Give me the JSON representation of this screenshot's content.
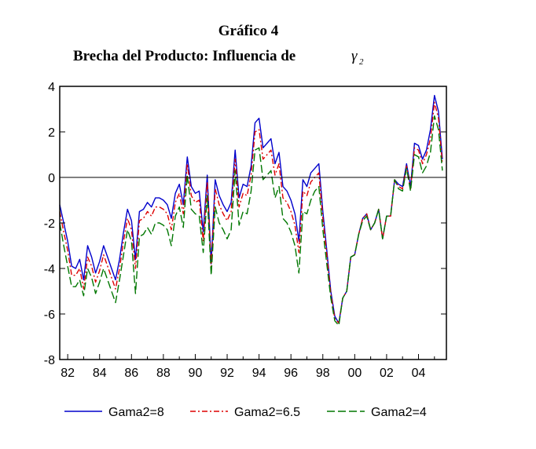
{
  "chart_data": {
    "type": "line",
    "title": "Gráfico 4",
    "subtitle": "Brecha del Producto: Influencia de",
    "subtitle_symbol": "γ",
    "subtitle_symbol_sub": "2",
    "xlabel": "",
    "ylabel": "",
    "ylim": [
      -8,
      4
    ],
    "xlim": [
      1981.5,
      2005.75
    ],
    "y_ticks": [
      4,
      2,
      0,
      -2,
      -4,
      -6,
      -8
    ],
    "y_tick_labels": [
      "4",
      "2",
      "0",
      "-2",
      "-4",
      "-6",
      "-8"
    ],
    "x_ticks": [
      1982,
      1984,
      1986,
      1988,
      1990,
      1992,
      1994,
      1996,
      1998,
      2000,
      2002,
      2004
    ],
    "x_tick_labels": [
      "82",
      "84",
      "86",
      "88",
      "90",
      "92",
      "94",
      "96",
      "98",
      "00",
      "02",
      "04"
    ],
    "zero_line": true,
    "grid": false,
    "legend_position": "bottom",
    "x_start": 1981.5,
    "x_step": 0.25,
    "series": [
      {
        "name": "Gama2=8",
        "color": "#0000cc",
        "dash": "solid",
        "values": [
          -1.2,
          -2.0,
          -2.8,
          -3.9,
          -4.0,
          -3.6,
          -4.5,
          -3.0,
          -3.5,
          -4.2,
          -3.7,
          -3.0,
          -3.5,
          -4.0,
          -4.5,
          -3.6,
          -2.4,
          -1.4,
          -1.9,
          -3.6,
          -1.5,
          -1.4,
          -1.1,
          -1.3,
          -0.9,
          -0.9,
          -1.0,
          -1.2,
          -1.8,
          -0.7,
          -0.3,
          -1.2,
          0.9,
          -0.4,
          -0.7,
          -0.6,
          -2.4,
          0.1,
          -3.8,
          -0.1,
          -0.8,
          -1.2,
          -1.5,
          -1.1,
          1.2,
          -0.9,
          -0.3,
          -0.4,
          0.5,
          2.4,
          2.6,
          1.3,
          1.5,
          1.7,
          0.6,
          1.1,
          -0.4,
          -0.6,
          -1.0,
          -1.6,
          -2.8,
          -0.1,
          -0.4,
          0.2,
          0.4,
          0.6,
          -1.5,
          -3.2,
          -5.0,
          -6.1,
          -6.4,
          -5.3,
          -5.0,
          -3.5,
          -3.4,
          -2.5,
          -1.8,
          -1.6,
          -2.3,
          -2.0,
          -1.4,
          -2.7,
          -1.7,
          -1.7,
          -0.1,
          -0.3,
          -0.4,
          0.6,
          -0.4,
          1.5,
          1.4,
          0.8,
          1.2,
          2.1,
          3.6,
          2.9,
          0.8
        ]
      },
      {
        "name": "Gama2=6.5",
        "color": "#dd0000",
        "dash": "dashdot",
        "values": [
          -1.5,
          -2.4,
          -3.2,
          -4.3,
          -4.3,
          -4.0,
          -4.9,
          -3.5,
          -3.9,
          -4.6,
          -4.1,
          -3.4,
          -3.9,
          -4.4,
          -4.9,
          -4.0,
          -2.8,
          -1.8,
          -2.3,
          -4.0,
          -1.9,
          -1.8,
          -1.5,
          -1.7,
          -1.3,
          -1.3,
          -1.4,
          -1.6,
          -2.3,
          -1.1,
          -0.7,
          -1.6,
          0.6,
          -0.8,
          -1.1,
          -1.0,
          -2.8,
          -0.2,
          -4.0,
          -0.5,
          -1.2,
          -1.6,
          -1.9,
          -1.5,
          0.8,
          -1.3,
          -0.7,
          -0.8,
          0.1,
          2.0,
          2.1,
          0.8,
          1.0,
          1.2,
          0.1,
          0.6,
          -0.9,
          -1.1,
          -1.5,
          -2.1,
          -3.3,
          -0.6,
          -0.8,
          -0.2,
          0.0,
          0.2,
          -1.8,
          -3.4,
          -5.1,
          -6.2,
          -6.4,
          -5.3,
          -5.0,
          -3.5,
          -3.4,
          -2.5,
          -1.8,
          -1.6,
          -2.3,
          -2.0,
          -1.4,
          -2.7,
          -1.7,
          -1.7,
          -0.1,
          -0.4,
          -0.5,
          0.5,
          -0.5,
          1.3,
          1.2,
          0.6,
          1.0,
          1.7,
          3.3,
          2.6,
          0.6
        ]
      },
      {
        "name": "Gama2=4",
        "color": "#007700",
        "dash": "longdash",
        "values": [
          -2.0,
          -3.0,
          -3.9,
          -4.8,
          -4.8,
          -4.5,
          -5.2,
          -4.0,
          -4.4,
          -5.1,
          -4.6,
          -4.0,
          -4.5,
          -5.0,
          -5.5,
          -4.5,
          -3.4,
          -2.3,
          -2.8,
          -5.1,
          -2.6,
          -2.5,
          -2.2,
          -2.5,
          -2.0,
          -2.0,
          -2.1,
          -2.3,
          -3.0,
          -1.7,
          -1.3,
          -2.2,
          0.1,
          -1.4,
          -1.6,
          -1.7,
          -3.3,
          -0.8,
          -4.3,
          -1.3,
          -2.0,
          -2.3,
          -2.7,
          -2.3,
          0.3,
          -2.1,
          -1.5,
          -1.6,
          -0.6,
          1.2,
          1.3,
          -0.1,
          0.1,
          0.3,
          -0.9,
          -0.4,
          -1.8,
          -2.0,
          -2.4,
          -3.0,
          -4.2,
          -1.5,
          -1.6,
          -1.0,
          -0.6,
          -0.4,
          -2.3,
          -3.8,
          -5.3,
          -6.3,
          -6.5,
          -5.3,
          -5.0,
          -3.5,
          -3.4,
          -2.5,
          -1.9,
          -1.7,
          -2.3,
          -2.0,
          -1.4,
          -2.7,
          -1.7,
          -1.7,
          -0.1,
          -0.5,
          -0.6,
          0.4,
          -0.6,
          1.0,
          0.9,
          0.2,
          0.5,
          1.1,
          2.7,
          2.1,
          0.3
        ]
      }
    ]
  }
}
